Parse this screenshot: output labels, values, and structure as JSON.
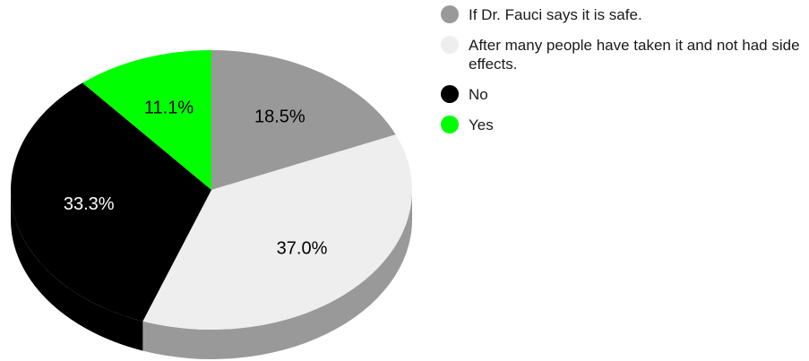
{
  "chart_data": {
    "type": "pie",
    "title": "",
    "slices": [
      {
        "label": "If Dr. Fauci says it is safe.",
        "value": 18.5,
        "value_label": "18.5%",
        "color": "#999999"
      },
      {
        "label": "After many people have taken it and not had side effects.",
        "value": 37.0,
        "value_label": "37.0%",
        "color": "#eeeeee"
      },
      {
        "label": "No",
        "value": 33.3,
        "value_label": "33.3%",
        "color": "#000000"
      },
      {
        "label": "Yes",
        "value": 11.1,
        "value_label": "11.1%",
        "color": "#00ff00"
      }
    ],
    "start_direction": "top",
    "rotation": "clockwise",
    "style": "3d-tilted",
    "legend": "right"
  }
}
